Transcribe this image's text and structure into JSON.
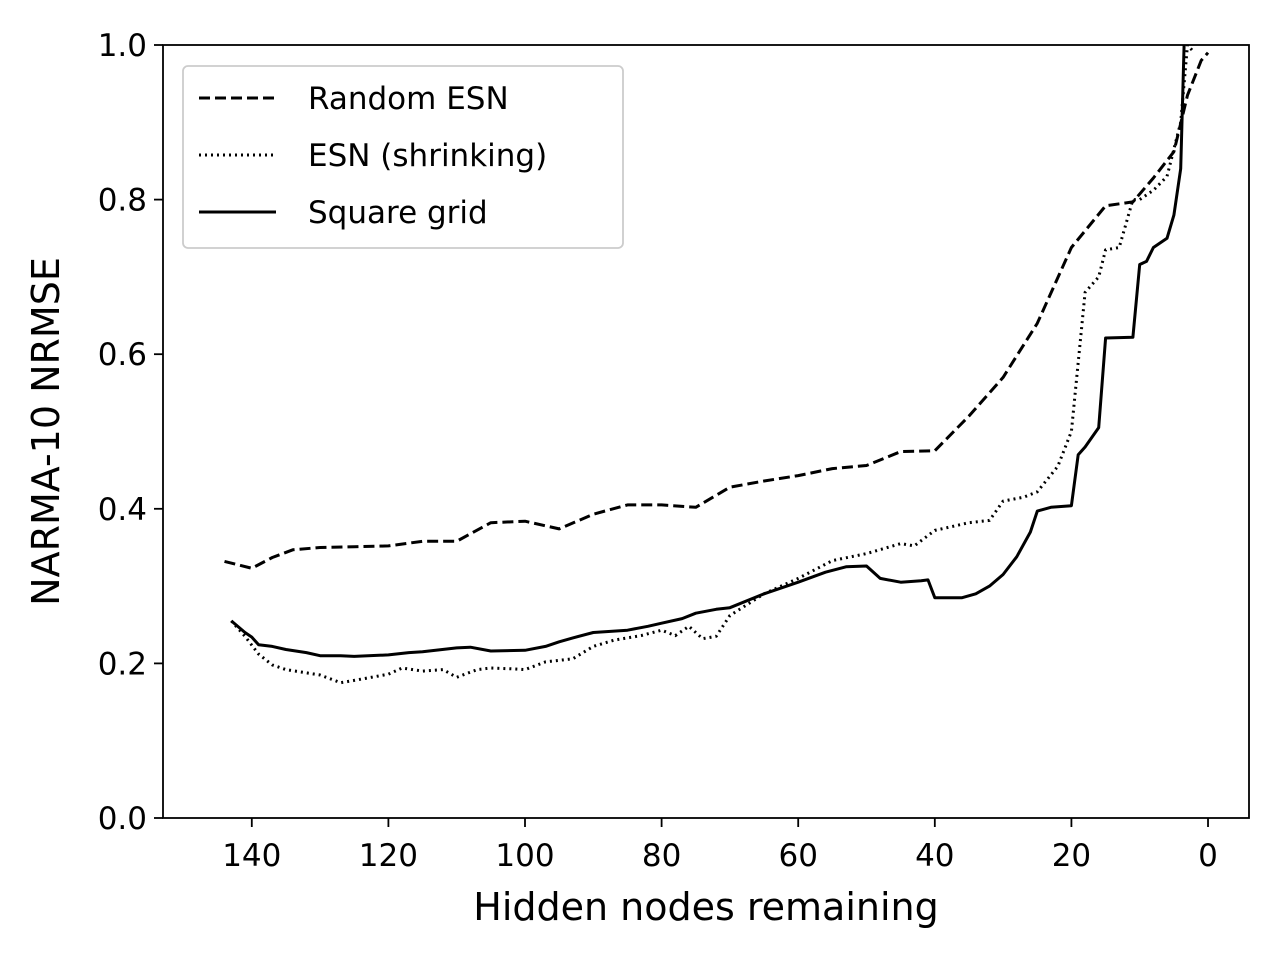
{
  "chart_data": {
    "type": "line",
    "xlabel": "Hidden nodes remaining",
    "ylabel": "NARMA-10 NRMSE",
    "xlim": [
      153,
      -6
    ],
    "ylim": [
      0,
      1
    ],
    "x_inverted": true,
    "xticks": [
      140,
      120,
      100,
      80,
      60,
      40,
      20,
      0
    ],
    "yticks": [
      0.0,
      0.2,
      0.4,
      0.6,
      0.8,
      1.0
    ],
    "ytick_labels": [
      "0.0",
      "0.2",
      "0.4",
      "0.6",
      "0.8",
      "1.0"
    ],
    "legend_position": "top-left",
    "grid": false,
    "series": [
      {
        "name": "Random ESN",
        "style": "dashed",
        "color": "#000000",
        "points": [
          [
            144,
            0.332
          ],
          [
            140,
            0.323
          ],
          [
            137,
            0.337
          ],
          [
            134,
            0.347
          ],
          [
            130,
            0.35
          ],
          [
            125,
            0.351
          ],
          [
            120,
            0.352
          ],
          [
            115,
            0.358
          ],
          [
            110,
            0.358
          ],
          [
            105,
            0.382
          ],
          [
            100,
            0.384
          ],
          [
            95,
            0.374
          ],
          [
            90,
            0.393
          ],
          [
            85,
            0.405
          ],
          [
            80,
            0.405
          ],
          [
            75,
            0.402
          ],
          [
            70,
            0.428
          ],
          [
            65,
            0.436
          ],
          [
            60,
            0.443
          ],
          [
            55,
            0.452
          ],
          [
            50,
            0.456
          ],
          [
            45,
            0.474
          ],
          [
            40,
            0.475
          ],
          [
            35,
            0.52
          ],
          [
            30,
            0.57
          ],
          [
            25,
            0.64
          ],
          [
            20,
            0.738
          ],
          [
            15,
            0.792
          ],
          [
            11,
            0.797
          ],
          [
            8,
            0.828
          ],
          [
            5,
            0.862
          ],
          [
            3,
            0.935
          ],
          [
            1,
            0.98
          ],
          [
            0,
            0.99
          ]
        ]
      },
      {
        "name": "ESN (shrinking)",
        "style": "dotted",
        "color": "#000000",
        "points": [
          [
            143,
            0.255
          ],
          [
            141,
            0.235
          ],
          [
            139,
            0.212
          ],
          [
            137,
            0.198
          ],
          [
            135,
            0.192
          ],
          [
            130,
            0.185
          ],
          [
            127,
            0.175
          ],
          [
            125,
            0.178
          ],
          [
            120,
            0.186
          ],
          [
            118,
            0.194
          ],
          [
            115,
            0.19
          ],
          [
            112,
            0.192
          ],
          [
            110,
            0.182
          ],
          [
            107,
            0.192
          ],
          [
            105,
            0.194
          ],
          [
            102,
            0.193
          ],
          [
            100,
            0.192
          ],
          [
            97,
            0.202
          ],
          [
            93,
            0.206
          ],
          [
            90,
            0.222
          ],
          [
            87,
            0.23
          ],
          [
            83,
            0.236
          ],
          [
            80,
            0.243
          ],
          [
            78,
            0.236
          ],
          [
            76,
            0.248
          ],
          [
            74,
            0.232
          ],
          [
            72,
            0.235
          ],
          [
            70,
            0.262
          ],
          [
            65,
            0.29
          ],
          [
            60,
            0.31
          ],
          [
            55,
            0.333
          ],
          [
            50,
            0.342
          ],
          [
            45,
            0.355
          ],
          [
            43,
            0.352
          ],
          [
            40,
            0.372
          ],
          [
            35,
            0.382
          ],
          [
            32,
            0.385
          ],
          [
            30,
            0.41
          ],
          [
            27,
            0.415
          ],
          [
            25,
            0.422
          ],
          [
            22,
            0.455
          ],
          [
            20,
            0.5
          ],
          [
            18,
            0.68
          ],
          [
            16,
            0.7
          ],
          [
            15,
            0.735
          ],
          [
            13,
            0.738
          ],
          [
            11,
            0.8
          ],
          [
            10,
            0.8
          ],
          [
            8,
            0.812
          ],
          [
            6,
            0.83
          ],
          [
            4,
            0.9
          ],
          [
            3,
            1.0
          ],
          [
            2,
            0.99
          ]
        ]
      },
      {
        "name": "Square grid",
        "style": "solid",
        "color": "#000000",
        "points": [
          [
            143,
            0.255
          ],
          [
            141,
            0.24
          ],
          [
            140,
            0.234
          ],
          [
            139,
            0.224
          ],
          [
            137,
            0.222
          ],
          [
            135,
            0.218
          ],
          [
            132,
            0.214
          ],
          [
            130,
            0.21
          ],
          [
            127,
            0.21
          ],
          [
            125,
            0.209
          ],
          [
            120,
            0.211
          ],
          [
            117,
            0.214
          ],
          [
            115,
            0.215
          ],
          [
            110,
            0.22
          ],
          [
            108,
            0.221
          ],
          [
            105,
            0.216
          ],
          [
            100,
            0.217
          ],
          [
            97,
            0.222
          ],
          [
            95,
            0.228
          ],
          [
            93,
            0.233
          ],
          [
            90,
            0.24
          ],
          [
            85,
            0.243
          ],
          [
            82,
            0.248
          ],
          [
            80,
            0.252
          ],
          [
            77,
            0.258
          ],
          [
            75,
            0.265
          ],
          [
            72,
            0.27
          ],
          [
            70,
            0.272
          ],
          [
            65,
            0.29
          ],
          [
            60,
            0.305
          ],
          [
            56,
            0.318
          ],
          [
            53,
            0.325
          ],
          [
            50,
            0.326
          ],
          [
            48,
            0.31
          ],
          [
            45,
            0.305
          ],
          [
            42,
            0.307
          ],
          [
            41,
            0.308
          ],
          [
            40,
            0.285
          ],
          [
            36,
            0.285
          ],
          [
            34,
            0.29
          ],
          [
            32,
            0.3
          ],
          [
            30,
            0.315
          ],
          [
            28,
            0.338
          ],
          [
            26,
            0.37
          ],
          [
            25,
            0.397
          ],
          [
            23,
            0.402
          ],
          [
            20,
            0.404
          ],
          [
            19,
            0.47
          ],
          [
            18,
            0.48
          ],
          [
            16,
            0.505
          ],
          [
            15,
            0.621
          ],
          [
            11,
            0.622
          ],
          [
            10,
            0.716
          ],
          [
            9,
            0.72
          ],
          [
            8,
            0.738
          ],
          [
            6,
            0.75
          ],
          [
            5,
            0.78
          ],
          [
            4,
            0.84
          ],
          [
            3.5,
            1.0
          ]
        ]
      }
    ]
  }
}
